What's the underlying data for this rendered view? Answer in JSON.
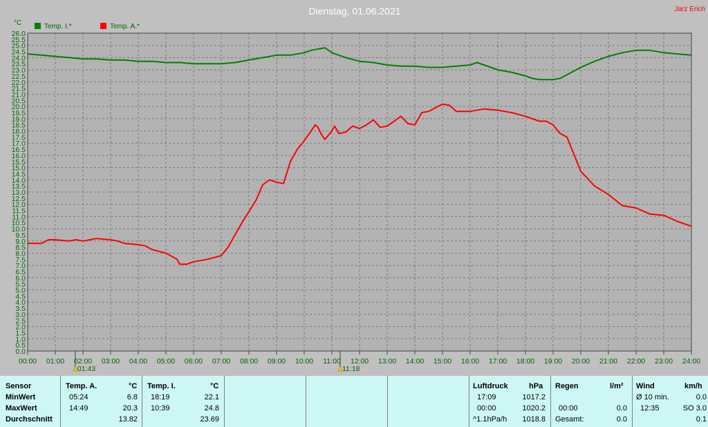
{
  "chart_data": {
    "type": "line",
    "title": "Dienstag, 01.06.2021",
    "credit": "Jarz Erich",
    "ylabel": "°C",
    "ylim": [
      0,
      26
    ],
    "xlim": [
      0,
      24
    ],
    "y_ticks": [
      "0.0",
      "0.5",
      "1.0",
      "1.5",
      "2.0",
      "2.5",
      "3.0",
      "3.5",
      "4.0",
      "4.5",
      "5.0",
      "5.5",
      "6.0",
      "6.5",
      "7.0",
      "7.5",
      "8.0",
      "8.5",
      "9.0",
      "9.5",
      "10.0",
      "10.5",
      "11.0",
      "11.5",
      "12.0",
      "12.5",
      "13.0",
      "13.5",
      "14.0",
      "14.5",
      "15.0",
      "15.5",
      "16.0",
      "16.5",
      "17.0",
      "17.5",
      "18.0",
      "18.5",
      "19.0",
      "19.5",
      "20.0",
      "20.5",
      "21.0",
      "21.5",
      "22.0",
      "22.5",
      "23.0",
      "23.5",
      "24.0",
      "24.5",
      "25.0",
      "25.5",
      "26.0"
    ],
    "x_ticks": [
      "00:00",
      "01:00",
      "02:00",
      "03:00",
      "04:00",
      "05:00",
      "06:00",
      "07:00",
      "08:00",
      "09:00",
      "10:00",
      "11:00",
      "12:00",
      "13:00",
      "14:00",
      "15:00",
      "16:00",
      "17:00",
      "18:00",
      "19:00",
      "20:00",
      "21:00",
      "22:00",
      "23:00",
      "24:00"
    ],
    "grid": true,
    "legend": "top-left",
    "sun_markers": [
      {
        "label": "01:43",
        "x": 1.72
      },
      {
        "label": "11:18",
        "x": 11.3
      }
    ],
    "series": [
      {
        "name": "Temp. I.*",
        "color": "#008000",
        "x": [
          0,
          0.5,
          1,
          1.5,
          2,
          2.5,
          3,
          3.5,
          4,
          4.5,
          5,
          5.5,
          6,
          6.5,
          7,
          7.5,
          8,
          8.5,
          9,
          9.5,
          10,
          10.25,
          10.5,
          10.75,
          11,
          11.25,
          11.5,
          12,
          12.5,
          13,
          13.5,
          14,
          14.5,
          15,
          15.5,
          16,
          16.25,
          16.5,
          17,
          17.5,
          18,
          18.25,
          18.5,
          19,
          19.25,
          19.5,
          20,
          20.5,
          21,
          21.5,
          22,
          22.5,
          23,
          23.5,
          24
        ],
        "values": [
          24.3,
          24.2,
          24.1,
          24.0,
          23.9,
          23.9,
          23.8,
          23.8,
          23.7,
          23.7,
          23.6,
          23.6,
          23.5,
          23.5,
          23.5,
          23.6,
          23.8,
          24.0,
          24.2,
          24.2,
          24.4,
          24.6,
          24.7,
          24.8,
          24.4,
          24.2,
          24.0,
          23.7,
          23.6,
          23.4,
          23.3,
          23.3,
          23.2,
          23.2,
          23.3,
          23.4,
          23.6,
          23.4,
          23.0,
          22.8,
          22.5,
          22.3,
          22.2,
          22.2,
          22.3,
          22.6,
          23.2,
          23.7,
          24.1,
          24.4,
          24.6,
          24.6,
          24.4,
          24.3,
          24.2
        ]
      },
      {
        "name": "Temp. A.*",
        "color": "#ff0000",
        "x": [
          0,
          0.5,
          0.75,
          1,
          1.5,
          1.75,
          2,
          2.5,
          3,
          3.25,
          3.5,
          4,
          4.25,
          4.5,
          5,
          5.25,
          5.4,
          5.5,
          5.75,
          6,
          6.5,
          7,
          7.25,
          7.5,
          7.75,
          8,
          8.25,
          8.5,
          8.75,
          9,
          9.25,
          9.5,
          9.75,
          10,
          10.25,
          10.4,
          10.5,
          10.6,
          10.75,
          11,
          11.1,
          11.25,
          11.5,
          11.75,
          12,
          12.25,
          12.5,
          12.75,
          13,
          13.25,
          13.5,
          13.75,
          14,
          14.25,
          14.5,
          15,
          15.25,
          15.5,
          16,
          16.5,
          17,
          17.5,
          18,
          18.5,
          18.75,
          19,
          19.25,
          19.5,
          20,
          20.5,
          21,
          21.5,
          22,
          22.5,
          23,
          23.5,
          24
        ],
        "values": [
          8.8,
          8.8,
          9.1,
          9.1,
          9.0,
          9.1,
          9.0,
          9.2,
          9.1,
          9.0,
          8.8,
          8.7,
          8.6,
          8.3,
          8.0,
          7.7,
          7.5,
          7.1,
          7.1,
          7.3,
          7.5,
          7.8,
          8.5,
          9.5,
          10.5,
          11.4,
          12.3,
          13.6,
          14.0,
          13.8,
          13.7,
          15.5,
          16.5,
          17.2,
          18.0,
          18.5,
          18.3,
          17.8,
          17.3,
          18.0,
          18.4,
          17.8,
          17.9,
          18.4,
          18.2,
          18.5,
          18.9,
          18.3,
          18.4,
          18.8,
          19.2,
          18.6,
          18.5,
          19.5,
          19.6,
          20.2,
          20.1,
          19.6,
          19.6,
          19.8,
          19.7,
          19.5,
          19.2,
          18.8,
          18.8,
          18.5,
          17.8,
          17.5,
          14.7,
          13.5,
          12.8,
          11.9,
          11.7,
          11.2,
          11.1,
          10.6,
          10.2
        ]
      }
    ]
  },
  "stats": {
    "sensor": {
      "header": "Sensor",
      "min": "MinWert",
      "max": "MaxWert",
      "avg": "Durchschnitt"
    },
    "temp_a": {
      "header": "Temp. A.",
      "unit": "°C",
      "min_time": "05:24",
      "min_val": "6.8",
      "max_time": "14:49",
      "max_val": "20.3",
      "avg_val": "13.82"
    },
    "temp_i": {
      "header": "Temp. I.",
      "unit": "°C",
      "min_time": "18:19",
      "min_val": "22.1",
      "max_time": "10:39",
      "max_val": "24.8",
      "avg_val": "23.69"
    },
    "pressure": {
      "header": "Luftdruck",
      "unit": "hPa",
      "min_time": "17:09",
      "min_val": "1017.2",
      "max_time": "00:00",
      "max_val": "1020.2",
      "trend_label": "^1.1hPa/h",
      "trend_val": "1018.8"
    },
    "rain": {
      "header": "Regen",
      "unit": "l/m²",
      "time": "00:00",
      "val": "0.0",
      "total_label": "Gesamt:",
      "total_val": "0.0"
    },
    "wind": {
      "header": "Wind",
      "unit": "km/h",
      "avg_label": "Ø 10 min.",
      "avg_val": "0.0",
      "max_time": "12:35",
      "max_val": "SO 3.0",
      "last_val": "0.1"
    }
  }
}
